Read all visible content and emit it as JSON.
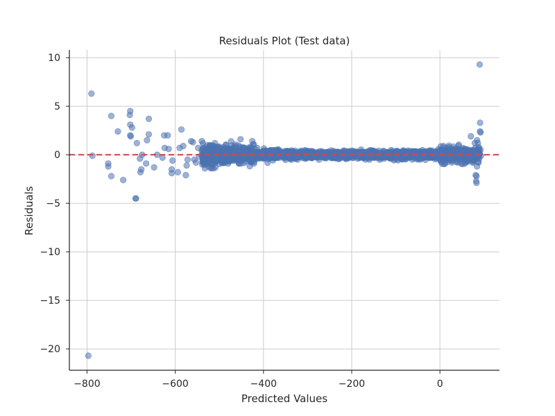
{
  "chart_data": {
    "type": "scatter",
    "title": "Residuals Plot (Test data)",
    "xlabel": "Predicted Values",
    "ylabel": "Residuals",
    "xlim": [
      -840,
      135
    ],
    "ylim": [
      -22.2,
      10.8
    ],
    "xticks": [
      -800,
      -600,
      -400,
      -200,
      0
    ],
    "xtick_labels": [
      "−800",
      "−600",
      "−400",
      "−200",
      "0"
    ],
    "yticks": [
      10,
      5,
      0,
      -5,
      -10,
      -15,
      -20
    ],
    "ytick_labels": [
      "10",
      "5",
      "0",
      "−5",
      "−10",
      "−15",
      "−20"
    ],
    "grid": true,
    "reference_line": {
      "y": 0,
      "style": "dashed",
      "color": "#c44e52"
    },
    "marker_color": "#4c72b0",
    "marker_alpha": 0.55,
    "outliers": [
      [
        -797,
        -20.7
      ],
      [
        -790,
        6.3
      ],
      [
        -788,
        -0.1
      ],
      [
        -752,
        -1.2
      ],
      [
        -752,
        -0.9
      ],
      [
        -745,
        4.0
      ],
      [
        -745,
        -2.2
      ],
      [
        -730,
        2.4
      ],
      [
        -718,
        -2.6
      ],
      [
        -702,
        4.5
      ],
      [
        -703,
        4.1
      ],
      [
        -702,
        3.1
      ],
      [
        -698,
        2.8
      ],
      [
        -702,
        2.0
      ],
      [
        -701,
        1.9
      ],
      [
        -690,
        -4.5
      ],
      [
        -689,
        -4.5
      ],
      [
        -687,
        1.2
      ],
      [
        -680,
        -0.4
      ],
      [
        -679,
        -1.8
      ],
      [
        -677,
        -1.5
      ],
      [
        -675,
        0.0
      ],
      [
        -666,
        -0.9
      ],
      [
        -664,
        1.5
      ],
      [
        -660,
        2.1
      ],
      [
        -660,
        3.7
      ],
      [
        -648,
        -1.3
      ],
      [
        -641,
        0.0
      ],
      [
        -629,
        -0.3
      ],
      [
        -625,
        2.0
      ],
      [
        -624,
        0.7
      ],
      [
        -617,
        2.0
      ],
      [
        -615,
        0.6
      ],
      [
        -608,
        -1.5
      ],
      [
        -608,
        -1.9
      ],
      [
        -606,
        -0.6
      ],
      [
        -594,
        -1.8
      ],
      [
        -590,
        0.7
      ],
      [
        -586,
        2.6
      ],
      [
        -582,
        0.9
      ],
      [
        -576,
        -2.1
      ],
      [
        -574,
        -1.1
      ],
      [
        -572,
        -0.5
      ],
      [
        -564,
        1.4
      ],
      [
        -560,
        1.3
      ],
      [
        -557,
        -0.5
      ],
      [
        -553,
        -0.8
      ],
      [
        -548,
        0.7
      ],
      [
        -546,
        -0.2
      ],
      [
        -532,
        -0.6
      ],
      [
        -510,
        1.2
      ],
      [
        -509,
        -1.3
      ],
      [
        -452,
        1.6
      ],
      [
        -451,
        -0.9
      ],
      [
        8,
        0.9
      ],
      [
        11,
        -0.4
      ],
      [
        11,
        -0.9
      ],
      [
        16,
        0.7
      ],
      [
        40,
        -0.6
      ],
      [
        41,
        -0.8
      ],
      [
        60,
        -0.6
      ],
      [
        70,
        1.9
      ],
      [
        72,
        0.2
      ],
      [
        75,
        -0.7
      ],
      [
        78,
        -0.5
      ],
      [
        79,
        1.2
      ],
      [
        81,
        -2.1
      ],
      [
        82,
        -2.7
      ],
      [
        83,
        -2.2
      ],
      [
        83,
        -2.9
      ],
      [
        84,
        1.5
      ],
      [
        84,
        0.5
      ],
      [
        84,
        -1.2
      ],
      [
        86,
        1.2
      ],
      [
        87,
        -0.8
      ],
      [
        88,
        0.1
      ],
      [
        89,
        -0.4
      ],
      [
        90,
        9.3
      ],
      [
        91,
        3.3
      ],
      [
        91,
        2.4
      ],
      [
        92,
        2.3
      ],
      [
        92,
        0.5
      ],
      [
        93,
        -0.1
      ]
    ]
  }
}
